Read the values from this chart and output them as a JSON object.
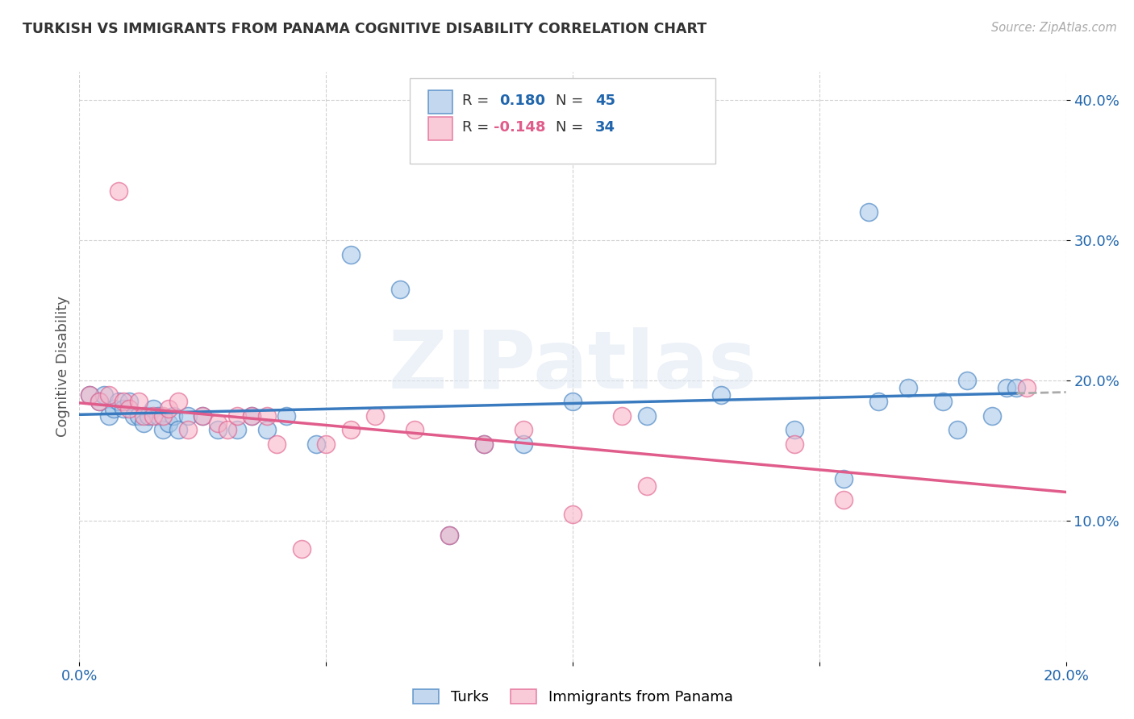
{
  "title": "TURKISH VS IMMIGRANTS FROM PANAMA COGNITIVE DISABILITY CORRELATION CHART",
  "source": "Source: ZipAtlas.com",
  "ylabel": "Cognitive Disability",
  "xmin": 0.0,
  "xmax": 0.2,
  "ymin": 0.0,
  "ymax": 0.42,
  "yticks": [
    0.1,
    0.2,
    0.3,
    0.4
  ],
  "xticks": [
    0.0,
    0.05,
    0.1,
    0.15,
    0.2
  ],
  "xtick_labels": [
    "0.0%",
    "",
    "",
    "",
    "20.0%"
  ],
  "ytick_labels": [
    "10.0%",
    "20.0%",
    "30.0%",
    "40.0%"
  ],
  "legend_turks_R": "0.180",
  "legend_turks_N": "45",
  "legend_panama_R": "-0.148",
  "legend_panama_N": "34",
  "turks_color": "#aac8e8",
  "panama_color": "#f7b6c9",
  "trendline_turks_color": "#3a7bbf",
  "trendline_panama_color": "#e05c8a",
  "watermark": "ZIPatlas",
  "turks_x": [
    0.002,
    0.004,
    0.005,
    0.006,
    0.007,
    0.008,
    0.009,
    0.01,
    0.011,
    0.012,
    0.013,
    0.014,
    0.015,
    0.016,
    0.017,
    0.018,
    0.019,
    0.02,
    0.022,
    0.025,
    0.028,
    0.032,
    0.035,
    0.038,
    0.042,
    0.048,
    0.055,
    0.065,
    0.075,
    0.082,
    0.09,
    0.1,
    0.115,
    0.13,
    0.145,
    0.155,
    0.16,
    0.162,
    0.168,
    0.175,
    0.178,
    0.18,
    0.185,
    0.188,
    0.19
  ],
  "turks_y": [
    0.19,
    0.185,
    0.19,
    0.175,
    0.18,
    0.185,
    0.18,
    0.185,
    0.175,
    0.175,
    0.17,
    0.175,
    0.18,
    0.175,
    0.165,
    0.17,
    0.175,
    0.165,
    0.175,
    0.175,
    0.165,
    0.165,
    0.175,
    0.165,
    0.175,
    0.155,
    0.29,
    0.265,
    0.09,
    0.155,
    0.155,
    0.185,
    0.175,
    0.19,
    0.165,
    0.13,
    0.32,
    0.185,
    0.195,
    0.185,
    0.165,
    0.2,
    0.175,
    0.195,
    0.195
  ],
  "panama_x": [
    0.002,
    0.004,
    0.006,
    0.008,
    0.009,
    0.01,
    0.012,
    0.013,
    0.015,
    0.017,
    0.018,
    0.02,
    0.022,
    0.025,
    0.028,
    0.03,
    0.032,
    0.035,
    0.038,
    0.04,
    0.045,
    0.05,
    0.055,
    0.06,
    0.068,
    0.075,
    0.082,
    0.09,
    0.1,
    0.11,
    0.115,
    0.145,
    0.155,
    0.192
  ],
  "panama_y": [
    0.19,
    0.185,
    0.19,
    0.335,
    0.185,
    0.18,
    0.185,
    0.175,
    0.175,
    0.175,
    0.18,
    0.185,
    0.165,
    0.175,
    0.17,
    0.165,
    0.175,
    0.175,
    0.175,
    0.155,
    0.08,
    0.155,
    0.165,
    0.175,
    0.165,
    0.09,
    0.155,
    0.165,
    0.105,
    0.175,
    0.125,
    0.155,
    0.115,
    0.195
  ]
}
